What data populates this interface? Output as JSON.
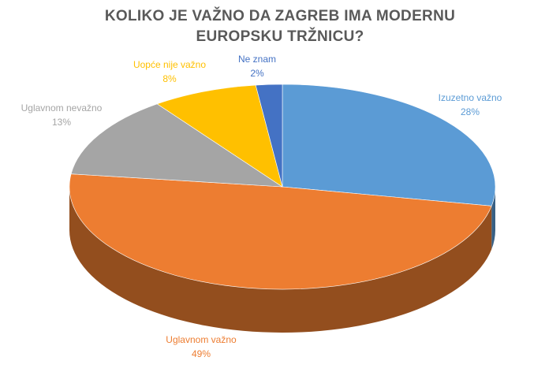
{
  "chart_data": {
    "type": "pie",
    "title": "KOLIKO JE VAŽNO DA ZAGREB IMA MODERNU EUROPSKU TRŽNICU?",
    "categories": [
      "Izuzetno važno",
      "Uglavnom važno",
      "Uglavnom nevažno",
      "Uopće nije važno",
      "Ne znam"
    ],
    "values": [
      28,
      49,
      13,
      8,
      2
    ],
    "value_labels": [
      "28%",
      "49%",
      "13%",
      "8%",
      "2%"
    ],
    "colors": [
      "#5b9bd5",
      "#ed7d31",
      "#a5a5a5",
      "#ffc000",
      "#4472c4"
    ]
  }
}
